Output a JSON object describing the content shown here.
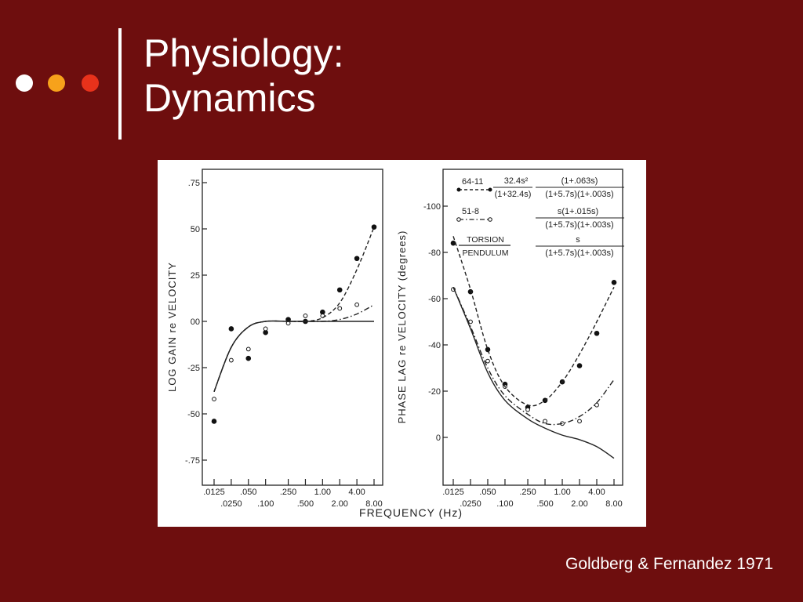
{
  "slide": {
    "background": "#6e0e0e",
    "title_lines": [
      "Physiology:",
      "Dynamics"
    ],
    "citation": "Goldberg & Fernandez 1971",
    "dot_colors": [
      "#ffffff",
      "#f7a21b",
      "#e8321b"
    ],
    "bar_color": "#ffffff"
  },
  "chart_data": [
    {
      "type": "scatter",
      "title": "",
      "ylabel": "LOG GAIN re VELOCITY",
      "xlabel": "FREQUENCY (Hz)",
      "xscale": "log",
      "ylim": [
        -0.85,
        0.8
      ],
      "y_ticks": [
        ".75",
        "50",
        "25",
        "00",
        "-25",
        "-50",
        "-.75"
      ],
      "y_tick_values": [
        0.75,
        0.5,
        0.25,
        0.0,
        -0.25,
        -0.5,
        -0.75
      ],
      "x_ticks_upper": [
        ".0125",
        ".050",
        ".250",
        "1.00",
        "4.00"
      ],
      "x_ticks_upper_values": [
        0.0125,
        0.05,
        0.25,
        1.0,
        4.0
      ],
      "x_ticks_lower": [
        ".0250",
        ".100",
        ".500",
        "2.00",
        "8.00"
      ],
      "x_ticks_lower_values": [
        0.025,
        0.1,
        0.5,
        2.0,
        8.0
      ],
      "series": [
        {
          "marker": "filled",
          "x": [
            0.0125,
            0.025,
            0.05,
            0.1,
            0.25,
            0.5,
            1.0,
            2.0,
            4.0,
            8.0
          ],
          "y": [
            -0.54,
            -0.04,
            -0.2,
            -0.06,
            0.01,
            0.0,
            0.05,
            0.17,
            0.34,
            0.51
          ]
        },
        {
          "marker": "open",
          "x": [
            0.0125,
            0.025,
            0.05,
            0.1,
            0.25,
            0.5,
            1.0,
            2.0,
            4.0
          ],
          "y": [
            -0.42,
            -0.21,
            -0.15,
            -0.04,
            -0.01,
            0.03,
            0.03,
            0.07,
            0.09
          ]
        },
        {
          "style": "dashed",
          "x": [
            0.0125,
            0.025,
            0.05,
            0.1,
            0.25,
            0.5,
            1.0,
            2.0,
            4.0,
            8.0
          ],
          "y": [
            -0.38,
            -0.14,
            -0.03,
            0.0,
            0.0,
            0.0,
            0.02,
            0.1,
            0.28,
            0.51
          ]
        },
        {
          "style": "dashdot",
          "x": [
            0.0125,
            0.025,
            0.05,
            0.1,
            0.25,
            0.5,
            1.0,
            2.0,
            4.0,
            8.0
          ],
          "y": [
            -0.38,
            -0.14,
            -0.03,
            0.0,
            0.0,
            0.0,
            0.0,
            0.01,
            0.04,
            0.09
          ]
        },
        {
          "style": "solid",
          "x": [
            0.0125,
            0.025,
            0.05,
            0.1,
            0.25,
            0.5,
            1.0,
            2.0,
            4.0,
            8.0
          ],
          "y": [
            -0.38,
            -0.14,
            -0.03,
            0.0,
            0.0,
            0.0,
            0.0,
            0.0,
            0.0,
            0.0
          ]
        }
      ]
    },
    {
      "type": "scatter",
      "title": "",
      "ylabel": "PHASE LAG re VELOCITY (degrees)",
      "xlabel": "FREQUENCY (Hz)",
      "xscale": "log",
      "ylim": [
        -15,
        115
      ],
      "y_ticks": [
        "-100",
        "-80",
        "-60",
        "-40",
        "-20",
        "0"
      ],
      "y_tick_values": [
        100,
        80,
        60,
        40,
        20,
        0
      ],
      "x_ticks_upper": [
        ".0125",
        ".050",
        ".250",
        "1.00",
        "4.00"
      ],
      "x_ticks_upper_values": [
        0.0125,
        0.05,
        0.25,
        1.0,
        4.0
      ],
      "x_ticks_lower": [
        ".0250",
        ".100",
        ".500",
        "2.00",
        "8.00"
      ],
      "x_ticks_lower_values": [
        0.025,
        0.1,
        0.5,
        2.0,
        8.0
      ],
      "legend": [
        {
          "label": "64-11",
          "marker": "filled",
          "style": "dashed",
          "numerator": "32.4s²",
          "denominator": "(1+32.4s)",
          "numerator2": "(1+.063s)",
          "denominator2": "(1+5.7s)(1+.003s)"
        },
        {
          "label": "51-8",
          "marker": "open",
          "style": "dashdot",
          "numerator": "",
          "denominator": "",
          "numerator2": "s(1+.015s)",
          "denominator2": "(1+5.7s)(1+.003s)"
        },
        {
          "label": "TORSION",
          "label2": "PENDULUM",
          "marker": "none",
          "style": "solid",
          "numerator": "",
          "denominator": "",
          "numerator2": "s",
          "denominator2": "(1+5.7s)(1+.003s)"
        }
      ],
      "series": [
        {
          "marker": "filled",
          "x": [
            0.0125,
            0.025,
            0.05,
            0.1,
            0.25,
            0.5,
            1.0,
            2.0,
            4.0,
            8.0
          ],
          "y": [
            84,
            63,
            38,
            23,
            13,
            16,
            24,
            31,
            45,
            67
          ]
        },
        {
          "marker": "open",
          "x": [
            0.0125,
            0.025,
            0.05,
            0.1,
            0.25,
            0.5,
            1.0,
            2.0,
            4.0
          ],
          "y": [
            64,
            50,
            33,
            22,
            12,
            7,
            6,
            7,
            14
          ]
        },
        {
          "style": "dashed",
          "x": [
            0.0125,
            0.025,
            0.05,
            0.1,
            0.25,
            0.5,
            1.0,
            2.0,
            4.0,
            8.0
          ],
          "y": [
            87,
            64,
            38,
            22,
            14,
            16,
            24,
            36,
            50,
            65
          ]
        },
        {
          "style": "dashdot",
          "x": [
            0.0125,
            0.025,
            0.05,
            0.1,
            0.25,
            0.5,
            1.0,
            2.0,
            4.0,
            8.0
          ],
          "y": [
            65,
            48,
            30,
            18,
            10,
            6,
            6,
            9,
            15,
            25
          ]
        },
        {
          "style": "solid",
          "x": [
            0.0125,
            0.025,
            0.05,
            0.1,
            0.25,
            0.5,
            1.0,
            2.0,
            4.0,
            8.0
          ],
          "y": [
            65,
            47,
            28,
            16,
            8,
            4,
            1,
            -1,
            -4,
            -9
          ]
        }
      ]
    }
  ]
}
